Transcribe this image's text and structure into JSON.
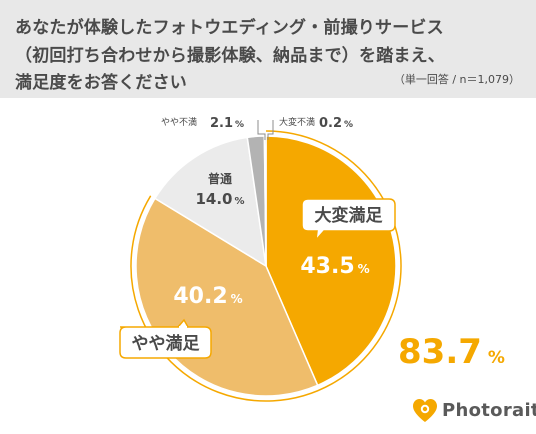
{
  "header": {
    "title_lines": [
      "あなたが体験したフォトウエディング・前撮りサービス",
      "（初回打ち合わせから撮影体験、納品まで）を踏まえ、",
      "満足度をお答ください"
    ],
    "note": "（単一回答 / n＝1,079）"
  },
  "chart_data": {
    "type": "pie",
    "title": "",
    "categories": [
      "大変満足",
      "やや満足",
      "普通",
      "やや不満",
      "大変不満"
    ],
    "values": [
      43.5,
      40.2,
      14.0,
      2.1,
      0.2
    ],
    "unit": "%",
    "colors": [
      "#f5a800",
      "#efbd6b",
      "#ebebeb",
      "#b3b3b3",
      "#8c8c8c"
    ],
    "labels": [
      {
        "name": "大変満足",
        "value": "43.5",
        "unit": "%"
      },
      {
        "name": "やや満足",
        "value": "40.2",
        "unit": "%"
      },
      {
        "name": "普通",
        "value": "14.0",
        "unit": "%"
      },
      {
        "name": "やや不満",
        "value": "2.1",
        "unit": "%"
      },
      {
        "name": "大変不満",
        "value": "0.2",
        "unit": "%"
      }
    ],
    "combined_total": {
      "value": "83.7",
      "unit": "%"
    }
  },
  "brand": {
    "name": "Photorait",
    "icon": "heart-camera-icon",
    "color": "#f5a800"
  }
}
